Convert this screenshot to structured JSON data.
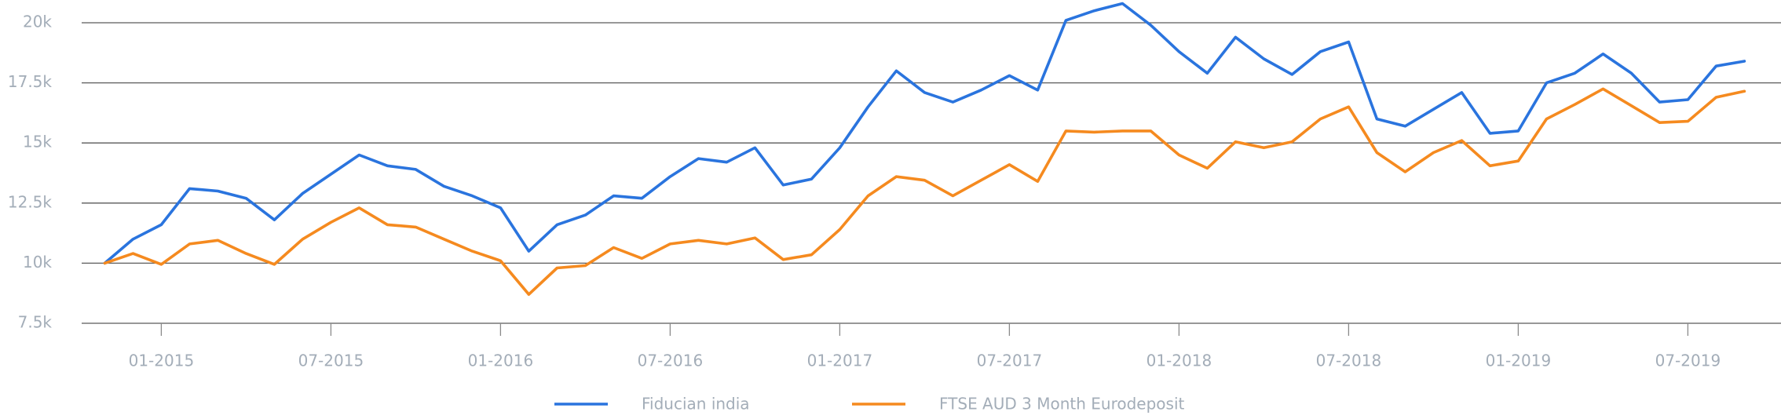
{
  "chart_data": {
    "type": "line",
    "x": [
      "11-2014",
      "12-2014",
      "01-2015",
      "02-2015",
      "03-2015",
      "04-2015",
      "05-2015",
      "06-2015",
      "07-2015",
      "08-2015",
      "09-2015",
      "10-2015",
      "11-2015",
      "12-2015",
      "01-2016",
      "02-2016",
      "03-2016",
      "04-2016",
      "05-2016",
      "06-2016",
      "07-2016",
      "08-2016",
      "09-2016",
      "10-2016",
      "11-2016",
      "12-2016",
      "01-2017",
      "02-2017",
      "03-2017",
      "04-2017",
      "05-2017",
      "06-2017",
      "07-2017",
      "08-2017",
      "09-2017",
      "10-2017",
      "11-2017",
      "12-2017",
      "01-2018",
      "02-2018",
      "03-2018",
      "04-2018",
      "05-2018",
      "06-2018",
      "07-2018",
      "08-2018",
      "09-2018",
      "10-2018",
      "11-2018",
      "12-2018",
      "01-2019",
      "02-2019",
      "03-2019",
      "04-2019",
      "05-2019",
      "06-2019",
      "07-2019",
      "08-2019",
      "09-2019"
    ],
    "series": [
      {
        "name": "Fiducian india",
        "color": "#2a74de",
        "values": [
          10000,
          11000,
          11600,
          13100,
          13000,
          12700,
          11800,
          12900,
          13700,
          14500,
          14050,
          13900,
          13200,
          12800,
          12300,
          10500,
          11600,
          12000,
          12800,
          12700,
          13600,
          14350,
          14200,
          14800,
          13250,
          13500,
          14800,
          16500,
          18000,
          17100,
          16700,
          17200,
          17800,
          17200,
          20100,
          20500,
          20800,
          19900,
          18800,
          17900,
          19400,
          18500,
          17850,
          18800,
          19200,
          16000,
          15700,
          16400,
          17100,
          15400,
          15500,
          17500,
          17900,
          18700,
          17900,
          16700,
          16800,
          18200,
          18400
        ]
      },
      {
        "name": "FTSE AUD 3 Month Eurodeposit",
        "color": "#f58a1f",
        "values": [
          10000,
          10400,
          9950,
          10800,
          10950,
          10400,
          9950,
          11000,
          11700,
          12300,
          11600,
          11500,
          11000,
          10500,
          10100,
          8700,
          9800,
          9900,
          10650,
          10200,
          10800,
          10950,
          10800,
          11050,
          10150,
          10350,
          11400,
          12800,
          13600,
          13450,
          12800,
          13450,
          14100,
          13400,
          15500,
          15450,
          15500,
          15500,
          14500,
          13950,
          15050,
          14800,
          15050,
          16000,
          16500,
          14600,
          13800,
          14600,
          15100,
          14050,
          14250,
          16000,
          16600,
          17250,
          16550,
          15850,
          15900,
          16900,
          17150
        ]
      }
    ],
    "xticks": [
      "01-2015",
      "07-2015",
      "01-2016",
      "07-2016",
      "01-2017",
      "07-2017",
      "01-2018",
      "07-2018",
      "01-2019",
      "07-2019"
    ],
    "ylim": [
      7500,
      20000
    ],
    "yticks": [
      {
        "value": 7500,
        "label": "7.5k"
      },
      {
        "value": 10000,
        "label": "10k"
      },
      {
        "value": 12500,
        "label": "12.5k"
      },
      {
        "value": 15000,
        "label": "15k"
      },
      {
        "value": 17500,
        "label": "17.5k"
      },
      {
        "value": 20000,
        "label": "20k"
      }
    ],
    "grid": true,
    "legend": "bottom"
  }
}
